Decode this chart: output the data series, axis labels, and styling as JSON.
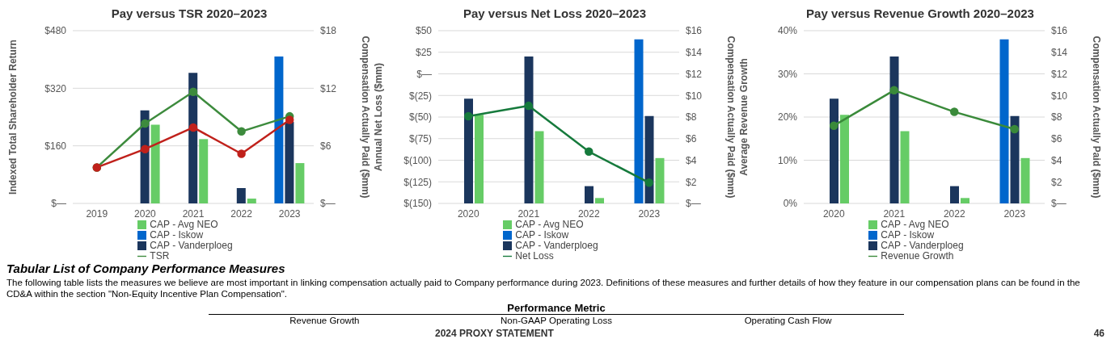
{
  "chart_data": [
    {
      "type": "bar",
      "title": "Pay versus TSR 2020–2023",
      "ylabel": "Indexed Total Shareholder Return",
      "y2label": "Compensation Actually Paid ($mm)",
      "categories": [
        "2019",
        "2020",
        "2021",
        "2022",
        "2023"
      ],
      "series": [
        {
          "name": "CAP - Iskow",
          "color": "#0066cc",
          "axis": "y2",
          "values": [
            null,
            null,
            null,
            null,
            15.3
          ]
        },
        {
          "name": "CAP - Vanderploeg",
          "color": "#1b365d",
          "axis": "y2",
          "values": [
            null,
            9.7,
            13.6,
            1.6,
            8.5
          ]
        },
        {
          "name": "CAP - Avg NEO",
          "color": "#66cc66",
          "axis": "y2",
          "values": [
            null,
            8.2,
            6.7,
            0.5,
            4.2
          ]
        },
        {
          "name": "TSR",
          "type": "line",
          "color": "#3d8b3d",
          "values": [
            100,
            222,
            310,
            200,
            242
          ]
        },
        {
          "type": "line",
          "color": "#c0211b",
          "values": [
            100,
            151,
            211,
            138,
            232
          ]
        }
      ],
      "ylim": [
        0,
        480
      ],
      "yticks": [
        {
          "value": 0,
          "label": "$—"
        },
        {
          "value": 160,
          "label": "$160"
        },
        {
          "value": 320,
          "label": "$320"
        },
        {
          "value": 480,
          "label": "$480"
        }
      ],
      "y2lim": [
        0,
        18
      ],
      "y2ticks": [
        {
          "value": 0,
          "label": "$—"
        },
        {
          "value": 6,
          "label": "$6"
        },
        {
          "value": 12,
          "label": "$12"
        },
        {
          "value": 18,
          "label": "$18"
        }
      ],
      "grid": "y",
      "legend": "bottom",
      "marker": "circle",
      "line_style": "solid"
    },
    {
      "type": "bar",
      "title": "Pay versus Net Loss 2020–2023",
      "ylabel": "Annual Net Loss ($mm)",
      "y2label": "Compensation Actually Paid ($mm)",
      "categories": [
        "2020",
        "2021",
        "2022",
        "2023"
      ],
      "series": [
        {
          "name": "CAP - Iskow",
          "color": "#0066cc",
          "axis": "y2",
          "values": [
            null,
            null,
            null,
            15.2
          ]
        },
        {
          "name": "CAP - Vanderploeg",
          "color": "#1b365d",
          "axis": "y2",
          "values": [
            9.7,
            13.6,
            1.6,
            8.1
          ]
        },
        {
          "name": "CAP - Avg NEO",
          "color": "#66cc66",
          "axis": "y2",
          "values": [
            8.2,
            6.7,
            0.5,
            4.2
          ]
        },
        {
          "name": "Net Loss",
          "type": "line",
          "color": "#167a3c",
          "values": [
            -49,
            -37,
            -90,
            -126
          ]
        }
      ],
      "ylim": [
        -150,
        50
      ],
      "yticks": [
        {
          "value": -150,
          "label": "$(150)"
        },
        {
          "value": -125,
          "label": "$(125)"
        },
        {
          "value": -100,
          "label": "$(100)"
        },
        {
          "value": -75,
          "label": "$(75)"
        },
        {
          "value": -50,
          "label": "$(50)"
        },
        {
          "value": -25,
          "label": "$(25)"
        },
        {
          "value": 0,
          "label": "$—"
        },
        {
          "value": 25,
          "label": "$25"
        },
        {
          "value": 50,
          "label": "$50"
        }
      ],
      "y2lim": [
        0,
        16
      ],
      "y2ticks": [
        {
          "value": 0,
          "label": "$—"
        },
        {
          "value": 2,
          "label": "$2"
        },
        {
          "value": 4,
          "label": "$4"
        },
        {
          "value": 6,
          "label": "$6"
        },
        {
          "value": 8,
          "label": "$8"
        },
        {
          "value": 10,
          "label": "$10"
        },
        {
          "value": 12,
          "label": "$12"
        },
        {
          "value": 14,
          "label": "$14"
        },
        {
          "value": 16,
          "label": "$16"
        }
      ],
      "grid": "y",
      "legend": "bottom",
      "marker": "circle",
      "line_style": "solid"
    },
    {
      "type": "bar",
      "title": "Pay versus Revenue Growth 2020–2023",
      "ylabel": "Average Revenue Growth",
      "y2label": "Compensation Actually Paid ($mm)",
      "categories": [
        "2020",
        "2021",
        "2022",
        "2023"
      ],
      "series": [
        {
          "name": "CAP - Iskow",
          "color": "#0066cc",
          "axis": "y2",
          "values": [
            null,
            null,
            null,
            15.2
          ]
        },
        {
          "name": "CAP - Vanderploeg",
          "color": "#1b365d",
          "axis": "y2",
          "values": [
            9.7,
            13.6,
            1.6,
            8.1
          ]
        },
        {
          "name": "CAP - Avg NEO",
          "color": "#66cc66",
          "axis": "y2",
          "values": [
            8.2,
            6.7,
            0.5,
            4.2
          ]
        },
        {
          "name": "Revenue Growth",
          "type": "line",
          "color": "#3a8a3a",
          "values": [
            18.0,
            26.2,
            21.2,
            17.2
          ]
        }
      ],
      "ylim": [
        0,
        40
      ],
      "yticks": [
        {
          "value": 0,
          "label": "0%"
        },
        {
          "value": 10,
          "label": "10%"
        },
        {
          "value": 20,
          "label": "20%"
        },
        {
          "value": 30,
          "label": "30%"
        },
        {
          "value": 40,
          "label": "40%"
        }
      ],
      "y2lim": [
        0,
        16
      ],
      "y2ticks": [
        {
          "value": 0,
          "label": "$—"
        },
        {
          "value": 2,
          "label": "$2"
        },
        {
          "value": 4,
          "label": "$4"
        },
        {
          "value": 6,
          "label": "$6"
        },
        {
          "value": 8,
          "label": "$8"
        },
        {
          "value": 10,
          "label": "$10"
        },
        {
          "value": 12,
          "label": "$12"
        },
        {
          "value": 14,
          "label": "$14"
        },
        {
          "value": 16,
          "label": "$16"
        }
      ],
      "grid": "y",
      "legend": "bottom",
      "marker": "circle",
      "line_style": "solid"
    },
    {
      "type": "other",
      "title": "Tabular List of Company Performance Measures",
      "annotations": [
        "The following table lists the measures we believe are most important in linking compensation actually paid to Company performance during 2023. Definitions of these measures and further details of how they feature in our compensation plans can be found in the CD&A within the section \"Non-Equity Incentive Plan Compensation\".",
        "Performance Metric",
        "Revenue Growth",
        "Non-GAAP Operating Loss",
        "Operating Cash Flow",
        "2024 PROXY STATEMENT",
        "46"
      ]
    }
  ]
}
